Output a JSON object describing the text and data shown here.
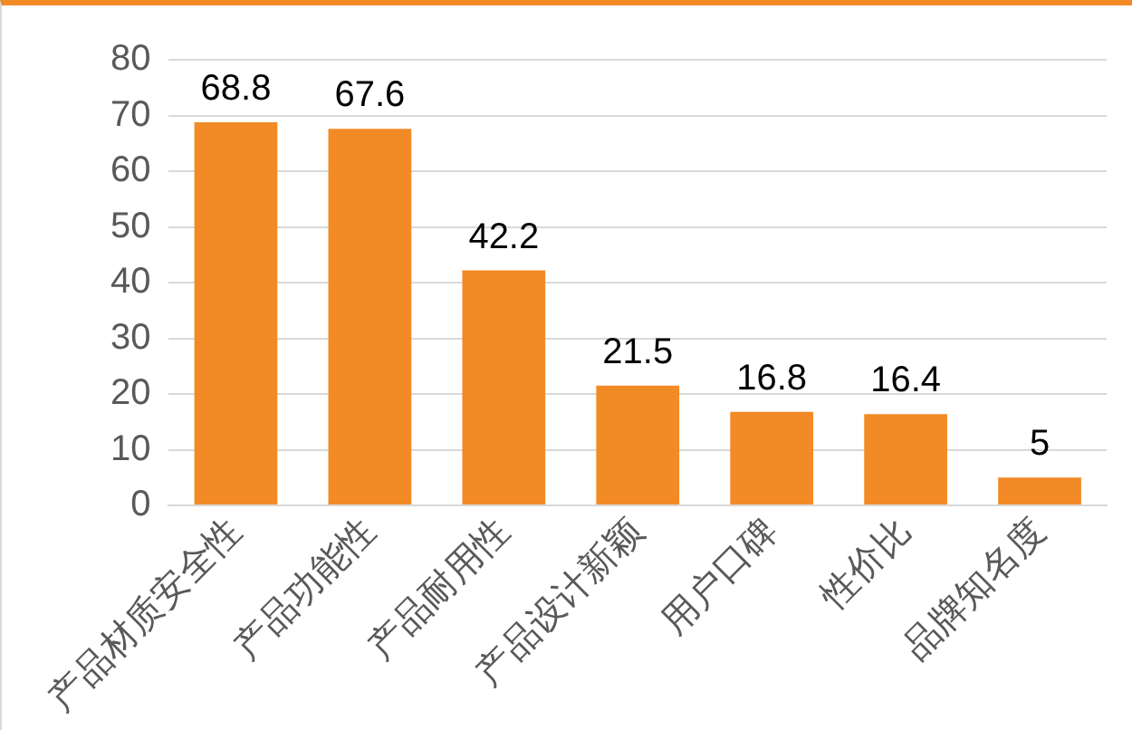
{
  "chart_data": {
    "type": "bar",
    "categories": [
      "产品材质安全性",
      "产品功能性",
      "产品耐用性",
      "产品设计新颖",
      "用户口碑",
      "性价比",
      "品牌知名度"
    ],
    "values": [
      68.8,
      67.6,
      42.2,
      21.5,
      16.8,
      16.4,
      5
    ],
    "color": "#f28a26",
    "ylim": [
      0,
      80
    ],
    "yticks": [
      0,
      10,
      20,
      30,
      40,
      50,
      60,
      70,
      80
    ],
    "grid": "y",
    "data_labels": true,
    "legend": false
  }
}
